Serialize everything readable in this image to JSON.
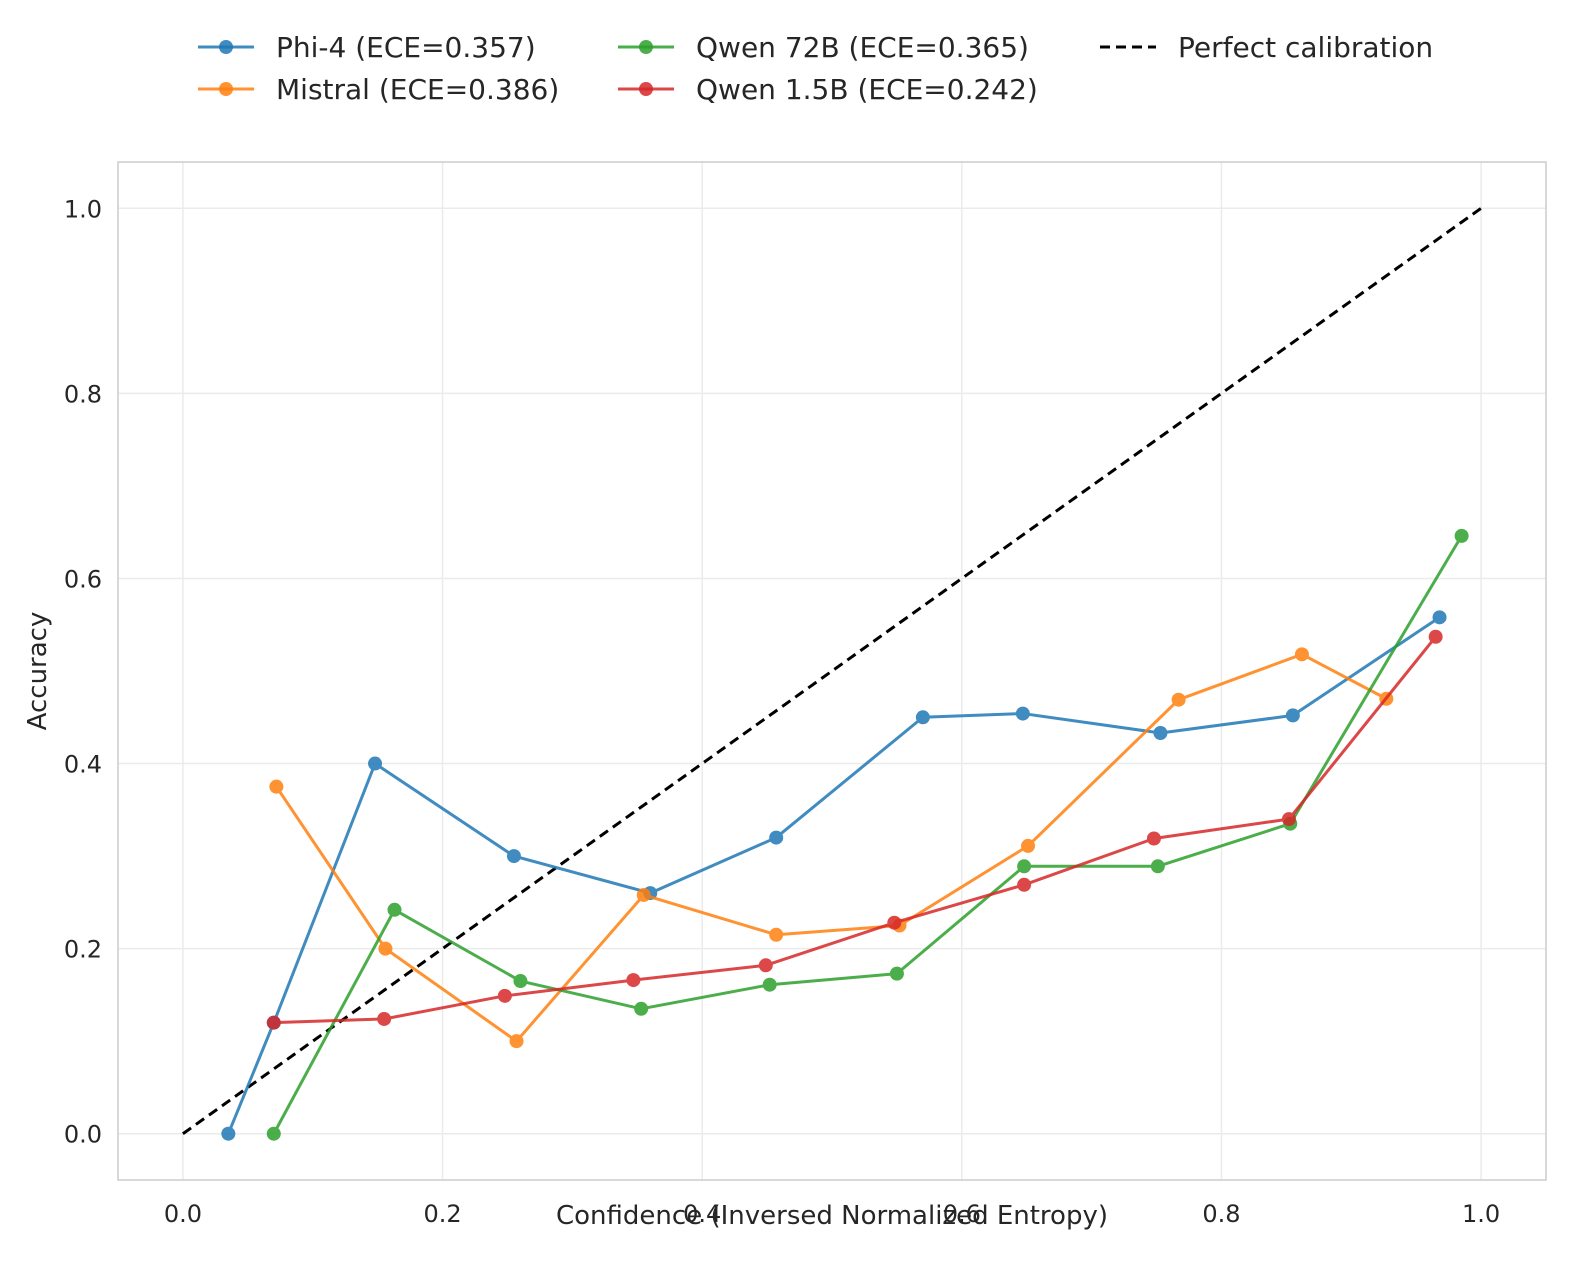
{
  "chart_data": {
    "type": "line",
    "title": "",
    "xlabel": "Confidence (Inversed Normalized Entropy)",
    "ylabel": "Accuracy",
    "xlim": [
      -0.05,
      1.05
    ],
    "ylim": [
      -0.05,
      1.05
    ],
    "xticks": [
      0.0,
      0.2,
      0.4,
      0.6,
      0.8,
      1.0
    ],
    "yticks": [
      0.0,
      0.2,
      0.4,
      0.6,
      0.8,
      1.0
    ],
    "xtick_labels": [
      "0.0",
      "0.2",
      "0.4",
      "0.6",
      "0.8",
      "1.0"
    ],
    "ytick_labels": [
      "0.0",
      "0.2",
      "0.4",
      "0.6",
      "0.8",
      "1.0"
    ],
    "grid": true,
    "legend_position": "top-center",
    "series": [
      {
        "name": "Phi-4 (ECE=0.357)",
        "color": "#1f77b4",
        "marker": "circle",
        "x": [
          0.035,
          0.07,
          0.148,
          0.255,
          0.36,
          0.457,
          0.57,
          0.647,
          0.753,
          0.855,
          0.968
        ],
        "y": [
          0.0,
          0.12,
          0.4,
          0.3,
          0.26,
          0.32,
          0.45,
          0.454,
          0.433,
          0.452,
          0.558
        ]
      },
      {
        "name": "Mistral (ECE=0.386)",
        "color": "#ff7f0e",
        "marker": "circle",
        "x": [
          0.072,
          0.156,
          0.257,
          0.355,
          0.457,
          0.552,
          0.651,
          0.767,
          0.862,
          0.927
        ],
        "y": [
          0.375,
          0.2,
          0.1,
          0.258,
          0.215,
          0.225,
          0.311,
          0.469,
          0.518,
          0.47
        ]
      },
      {
        "name": "Qwen 72B (ECE=0.365)",
        "color": "#2ca02c",
        "marker": "circle",
        "x": [
          0.07,
          0.163,
          0.26,
          0.353,
          0.452,
          0.55,
          0.648,
          0.751,
          0.853,
          0.985
        ],
        "y": [
          0.0,
          0.242,
          0.165,
          0.135,
          0.161,
          0.173,
          0.289,
          0.289,
          0.335,
          0.646
        ]
      },
      {
        "name": "Qwen 1.5B (ECE=0.242)",
        "color": "#d62728",
        "marker": "circle",
        "x": [
          0.07,
          0.155,
          0.248,
          0.347,
          0.449,
          0.548,
          0.648,
          0.748,
          0.852,
          0.965
        ],
        "y": [
          0.12,
          0.124,
          0.149,
          0.166,
          0.182,
          0.228,
          0.269,
          0.319,
          0.34,
          0.537
        ]
      }
    ],
    "reference_line": {
      "name": "Perfect calibration",
      "color": "#000000",
      "style": "dashed",
      "x": [
        0,
        1
      ],
      "y": [
        0,
        1
      ]
    }
  }
}
